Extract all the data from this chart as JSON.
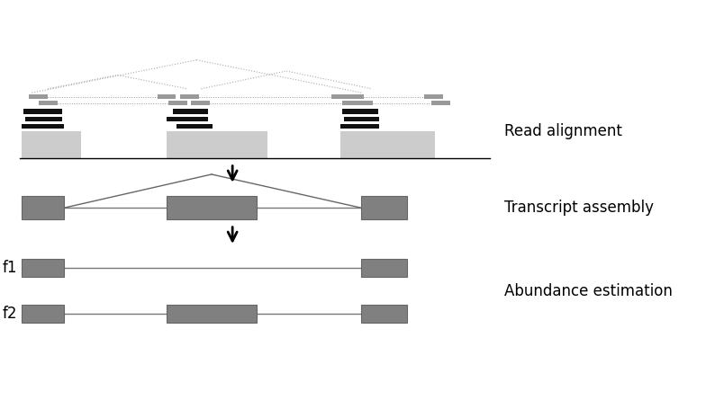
{
  "fig_width": 7.94,
  "fig_height": 4.45,
  "dpi": 100,
  "bg_color": "#ffffff",
  "text_color": "#000000",
  "gray_box_color": "#808080",
  "light_gray_color": "#cccccc",
  "black_read_color": "#111111",
  "mid_gray_color": "#999999",
  "label_read_alignment": "Read alignment",
  "label_transcript_assembly": "Transcript assembly",
  "label_abundance": "Abundance estimation",
  "label_f1": "f1",
  "label_f2": "f2",
  "font_size_labels": 12
}
